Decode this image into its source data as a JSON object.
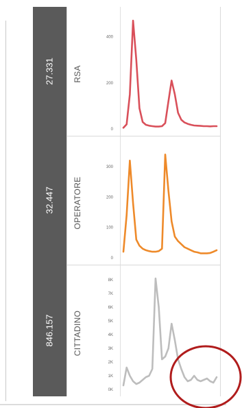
{
  "panels": [
    {
      "value_label": "27.331",
      "category": "RSA",
      "color": "#d9505a"
    },
    {
      "value_label": "32.447",
      "category": "OPERATORE",
      "color": "#ee8a2a"
    },
    {
      "value_label": "846.157",
      "category": "CITTADINO",
      "color": "#bdbdbd"
    }
  ],
  "highlight": {
    "color": "#b01c1c"
  },
  "chart_data": [
    {
      "type": "line",
      "title": "",
      "xlabel": "",
      "ylabel": "",
      "grid": false,
      "series": [
        {
          "name": "RSA",
          "values": [
            5,
            20,
            150,
            470,
            300,
            90,
            30,
            18,
            14,
            12,
            10,
            10,
            12,
            25,
            120,
            210,
            150,
            70,
            40,
            28,
            22,
            18,
            15,
            14,
            13,
            12,
            12,
            11,
            12,
            12
          ]
        }
      ],
      "ylim": [
        0,
        500
      ],
      "yticks": [
        0,
        200,
        400
      ],
      "ytick_labels": [
        "0",
        "200",
        "400"
      ]
    },
    {
      "type": "line",
      "title": "",
      "xlabel": "",
      "ylabel": "",
      "grid": false,
      "series": [
        {
          "name": "OPERATORE",
          "values": [
            20,
            140,
            320,
            180,
            60,
            40,
            30,
            25,
            22,
            20,
            20,
            22,
            30,
            340,
            220,
            120,
            70,
            55,
            45,
            35,
            30,
            25,
            20,
            18,
            15,
            15,
            15,
            16,
            20,
            25
          ]
        }
      ],
      "ylim": [
        0,
        370
      ],
      "yticks": [
        0,
        100,
        200,
        300
      ],
      "ytick_labels": [
        "0",
        "100",
        "200",
        "300"
      ]
    },
    {
      "type": "line",
      "title": "",
      "xlabel": "",
      "ylabel": "",
      "grid": false,
      "series": [
        {
          "name": "CITTADINO",
          "values": [
            300,
            1600,
            1000,
            600,
            400,
            500,
            700,
            900,
            1000,
            1500,
            8100,
            6000,
            2200,
            2400,
            3000,
            4800,
            3600,
            2200,
            1500,
            900,
            600,
            700,
            1000,
            700,
            600,
            700,
            800,
            600,
            500,
            900
          ]
        }
      ],
      "ylim": [
        0,
        8500
      ],
      "yticks": [
        0,
        1000,
        2000,
        3000,
        4000,
        5000,
        6000,
        7000,
        8000
      ],
      "ytick_labels": [
        "0K",
        "1K",
        "2K",
        "3K",
        "4K",
        "5K",
        "6K",
        "7K",
        "8K"
      ]
    }
  ]
}
